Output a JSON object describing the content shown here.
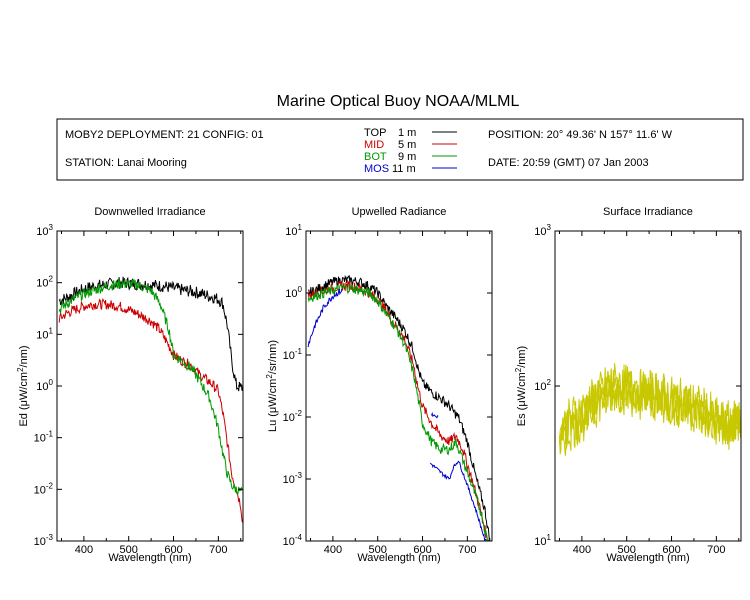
{
  "title": "Marine Optical Buoy NOAA/MLML",
  "info": {
    "deployment": "MOBY2 DEPLOYMENT: 21 CONFIG: 01",
    "station": "STATION: Lanai Mooring",
    "position": "POSITION: 20° 49.36' N   157° 11.6' W",
    "date": "DATE: 20:59 (GMT) 07 Jan 2003"
  },
  "legend": [
    {
      "name": "TOP",
      "depth": "1  m",
      "color": "#000000"
    },
    {
      "name": "MID",
      "depth": "5  m",
      "color": "#cc0000"
    },
    {
      "name": "BOT",
      "depth": "9  m",
      "color": "#009900"
    },
    {
      "name": "MOS",
      "depth": "11  m",
      "color": "#0000cc"
    }
  ],
  "chart_data": [
    {
      "type": "line",
      "title": "Downwelled Irradiance",
      "xlabel": "Wavelength (nm)",
      "ylabel_main": "Ed  (μW/cm",
      "ylabel_sup": "2",
      "ylabel_end": "/nm)",
      "xlim": [
        340,
        755
      ],
      "ylim": [
        0.001,
        1000
      ],
      "yscale": "log",
      "xticks": [
        400,
        500,
        600,
        700
      ],
      "yticks": [
        {
          "value": 0.001,
          "base": "10",
          "exp": "-3"
        },
        {
          "value": 0.01,
          "base": "10",
          "exp": "-2"
        },
        {
          "value": 0.1,
          "base": "10",
          "exp": "-1"
        },
        {
          "value": 1,
          "base": "10",
          "exp": "0"
        },
        {
          "value": 10,
          "base": "10",
          "exp": "1"
        },
        {
          "value": 100,
          "base": "10",
          "exp": "2"
        },
        {
          "value": 1000,
          "base": "10",
          "exp": "3"
        }
      ],
      "series": [
        {
          "name": "TOP",
          "color": "#000000",
          "noise": 0.12,
          "x": [
            345,
            360,
            380,
            400,
            420,
            450,
            480,
            500,
            520,
            550,
            580,
            600,
            620,
            640,
            660,
            680,
            690,
            700,
            710,
            720,
            730,
            740,
            755
          ],
          "y": [
            45,
            50,
            62,
            75,
            85,
            92,
            100,
            98,
            95,
            90,
            85,
            78,
            72,
            68,
            62,
            55,
            52,
            48,
            40,
            15,
            3,
            1,
            0.9
          ]
        },
        {
          "name": "MID",
          "color": "#cc0000",
          "noise": 0.1,
          "x": [
            345,
            360,
            380,
            400,
            420,
            450,
            480,
            500,
            520,
            550,
            570,
            590,
            600,
            620,
            640,
            660,
            680,
            690,
            700,
            710,
            720,
            730,
            740,
            750,
            755
          ],
          "y": [
            20,
            25,
            30,
            35,
            38,
            38,
            35,
            30,
            25,
            18,
            12,
            6,
            4,
            3,
            2.5,
            1.6,
            1.2,
            1,
            0.8,
            0.3,
            0.08,
            0.02,
            0.01,
            0.005,
            0.002
          ]
        },
        {
          "name": "BOT",
          "color": "#009900",
          "noise": 0.1,
          "x": [
            345,
            360,
            380,
            400,
            420,
            450,
            480,
            500,
            520,
            550,
            570,
            590,
            600,
            620,
            640,
            660,
            680,
            690,
            700,
            710,
            720,
            730,
            740,
            750,
            755
          ],
          "y": [
            30,
            38,
            50,
            60,
            70,
            85,
            95,
            95,
            90,
            70,
            40,
            12,
            4,
            3,
            2.2,
            1.2,
            0.6,
            0.3,
            0.15,
            0.05,
            0.02,
            0.012,
            0.01,
            0.009,
            0.008
          ]
        }
      ]
    },
    {
      "type": "line",
      "title": "Upwelled Radiance",
      "xlabel": "Wavelength (nm)",
      "ylabel_main": "Lu  (μW/cm",
      "ylabel_sup": "2",
      "ylabel_end": "/sr/nm)",
      "xlim": [
        340,
        755
      ],
      "ylim": [
        0.0001,
        10
      ],
      "yscale": "log",
      "xticks": [
        400,
        500,
        600,
        700
      ],
      "yticks": [
        {
          "value": 0.0001,
          "base": "10",
          "exp": "-4"
        },
        {
          "value": 0.001,
          "base": "10",
          "exp": "-3"
        },
        {
          "value": 0.01,
          "base": "10",
          "exp": "-2"
        },
        {
          "value": 0.1,
          "base": "10",
          "exp": "-1"
        },
        {
          "value": 1,
          "base": "10",
          "exp": "0"
        },
        {
          "value": 10,
          "base": "10",
          "exp": "1"
        }
      ],
      "series": [
        {
          "name": "TOP",
          "color": "#000000",
          "noise": 0.08,
          "x": [
            345,
            360,
            380,
            400,
            420,
            440,
            460,
            480,
            500,
            520,
            540,
            560,
            580,
            590,
            600,
            620,
            640,
            660,
            670,
            680,
            700,
            720,
            740,
            750
          ],
          "y": [
            1.0,
            1.1,
            1.3,
            1.5,
            1.6,
            1.6,
            1.5,
            1.3,
            1.0,
            0.6,
            0.4,
            0.25,
            0.12,
            0.06,
            0.035,
            0.025,
            0.02,
            0.015,
            0.012,
            0.01,
            0.004,
            0.001,
            0.0003,
            0.0001
          ]
        },
        {
          "name": "MID",
          "color": "#cc0000",
          "noise": 0.08,
          "x": [
            345,
            360,
            380,
            400,
            420,
            440,
            460,
            480,
            500,
            520,
            540,
            560,
            580,
            590,
            600,
            620,
            640,
            660,
            675,
            690,
            710,
            730,
            745,
            750
          ],
          "y": [
            0.9,
            1.0,
            1.1,
            1.2,
            1.3,
            1.3,
            1.2,
            1.0,
            0.8,
            0.5,
            0.3,
            0.18,
            0.07,
            0.03,
            0.015,
            0.008,
            0.005,
            0.004,
            0.005,
            0.003,
            0.001,
            0.0003,
            0.0001,
            0.0001
          ]
        },
        {
          "name": "BOT",
          "color": "#009900",
          "noise": 0.08,
          "x": [
            345,
            360,
            380,
            400,
            420,
            440,
            460,
            480,
            500,
            520,
            540,
            560,
            580,
            590,
            600,
            620,
            640,
            660,
            675,
            690,
            710,
            730,
            745,
            750
          ],
          "y": [
            0.8,
            0.9,
            1.0,
            1.1,
            1.2,
            1.2,
            1.1,
            1.0,
            0.75,
            0.45,
            0.28,
            0.15,
            0.05,
            0.02,
            0.008,
            0.004,
            0.003,
            0.003,
            0.004,
            0.002,
            0.0008,
            0.0003,
            0.0001,
            0.0001
          ]
        },
        {
          "name": "MOS",
          "color": "#0000cc",
          "noise": 0.05,
          "x": [
            345,
            360,
            380,
            400,
            420
          ],
          "y": [
            0.15,
            0.3,
            0.6,
            0.9,
            1.1
          ]
        },
        {
          "name": "MOS",
          "color": "#0000cc",
          "noise": 0.03,
          "x": [
            617,
            630,
            645,
            660,
            668,
            680,
            700,
            720,
            740,
            750
          ],
          "y": [
            0.0018,
            0.0015,
            0.0012,
            0.001,
            0.0015,
            0.002,
            0.0008,
            0.0003,
            0.0001,
            0.0001
          ]
        },
        {
          "name": "MOS",
          "color": "#0000cc",
          "noise": 0.02,
          "x": [
            620,
            628,
            635
          ],
          "y": [
            0.011,
            0.0105,
            0.01
          ]
        }
      ]
    },
    {
      "type": "line",
      "title": "Surface Irradiance",
      "xlabel": "Wavelength (nm)",
      "ylabel_main": "Es  (μW/cm",
      "ylabel_sup": "2",
      "ylabel_end": "/nm)",
      "xlim": [
        340,
        755
      ],
      "ylim": [
        10,
        1000
      ],
      "yscale": "log",
      "xticks": [
        400,
        500,
        600,
        700
      ],
      "yticks": [
        {
          "value": 10,
          "base": "10",
          "exp": "1"
        },
        {
          "value": 100,
          "base": "10",
          "exp": "2"
        },
        {
          "value": 1000,
          "base": "10",
          "exp": "3"
        }
      ],
      "series": [
        {
          "name": "Es",
          "color": "#c8c800",
          "noise": 0.14,
          "x": [
            350,
            370,
            380,
            400,
            420,
            440,
            460,
            480,
            500,
            520,
            540,
            560,
            580,
            600,
            620,
            640,
            660,
            680,
            700,
            720,
            740,
            755
          ],
          "y": [
            50,
            60,
            65,
            70,
            80,
            90,
            105,
            105,
            100,
            95,
            93,
            92,
            90,
            85,
            82,
            80,
            75,
            70,
            62,
            58,
            60,
            65
          ]
        },
        {
          "name": "Es",
          "color": "#c8c800",
          "noise": 0.14,
          "x": [
            350,
            370,
            380,
            400,
            420,
            440,
            460,
            480,
            500,
            520,
            540,
            560,
            580,
            600,
            620,
            640,
            660,
            680,
            700,
            720,
            740,
            755
          ],
          "y": [
            45,
            55,
            58,
            62,
            72,
            82,
            95,
            98,
            93,
            88,
            86,
            85,
            82,
            78,
            76,
            73,
            69,
            64,
            58,
            54,
            56,
            60
          ]
        },
        {
          "name": "Es",
          "color": "#c8c800",
          "noise": 0.14,
          "x": [
            350,
            370,
            380,
            400,
            420,
            440,
            460,
            480,
            500,
            520,
            540,
            560,
            580,
            600,
            620,
            640,
            660,
            680,
            700,
            720,
            740,
            755
          ],
          "y": [
            42,
            50,
            54,
            58,
            68,
            78,
            90,
            92,
            88,
            84,
            82,
            80,
            78,
            74,
            72,
            70,
            66,
            60,
            55,
            52,
            53,
            57
          ]
        }
      ]
    }
  ]
}
